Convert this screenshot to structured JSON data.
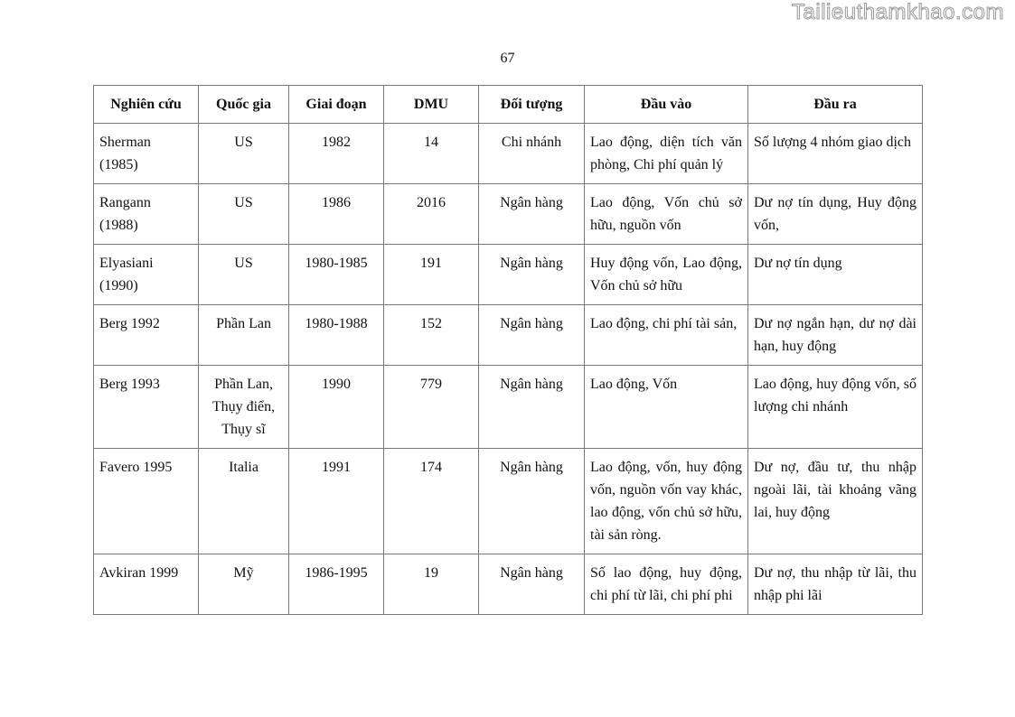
{
  "watermark": "Tailieuthamkhao.com",
  "page_number": "67",
  "table": {
    "headers": [
      "Nghiên cứu",
      "Quốc gia",
      "Giai đoạn",
      "DMU",
      "Đối tượng",
      "Đầu vào",
      "Đầu ra"
    ],
    "rows": [
      [
        "Sherman (1985)",
        "US",
        "1982",
        "14",
        "Chi nhánh",
        "Lao động, diện tích văn phòng, Chi phí quản lý",
        "Số lượng 4 nhóm giao dịch"
      ],
      [
        "Rangann (1988)",
        "US",
        "1986",
        "2016",
        "Ngân hàng",
        "Lao động, Vốn chủ sở hữu, nguồn vốn",
        "Dư nợ tín dụng, Huy động vốn,"
      ],
      [
        "Elyasiani (1990)",
        "US",
        "1980-1985",
        "191",
        "Ngân hàng",
        "Huy động vốn, Lao động, Vốn chủ sở hữu",
        "Dư nợ tín dụng"
      ],
      [
        "Berg 1992",
        "Phần Lan",
        "1980-1988",
        "152",
        "Ngân hàng",
        "Lao động, chi phí tài sản,",
        "Dư nợ ngắn hạn, dư nợ dài hạn, huy động"
      ],
      [
        "Berg 1993",
        "Phần Lan, Thụy điển, Thụy sĩ",
        "1990",
        "779",
        "Ngân hàng",
        "Lao động, Vốn",
        "Lao động, huy động vốn, số lượng chi nhánh"
      ],
      [
        "Favero 1995",
        "Italia",
        "1991",
        "174",
        "Ngân hàng",
        "Lao động, vốn, huy động vốn, nguồn vốn vay khác, lao động, vốn chủ sở hữu, tài sản ròng.",
        "Dư nợ, đầu tư, thu nhập ngoài lãi, tài khoảng vãng lai, huy động"
      ],
      [
        "Avkiran 1999",
        "Mỹ",
        "1986-1995",
        "19",
        "Ngân hàng",
        "Số lao động, huy động, chi phí từ lãi, chi phí phi",
        "Dư nợ, thu nhập từ lãi, thu nhập phi lãi"
      ]
    ]
  }
}
